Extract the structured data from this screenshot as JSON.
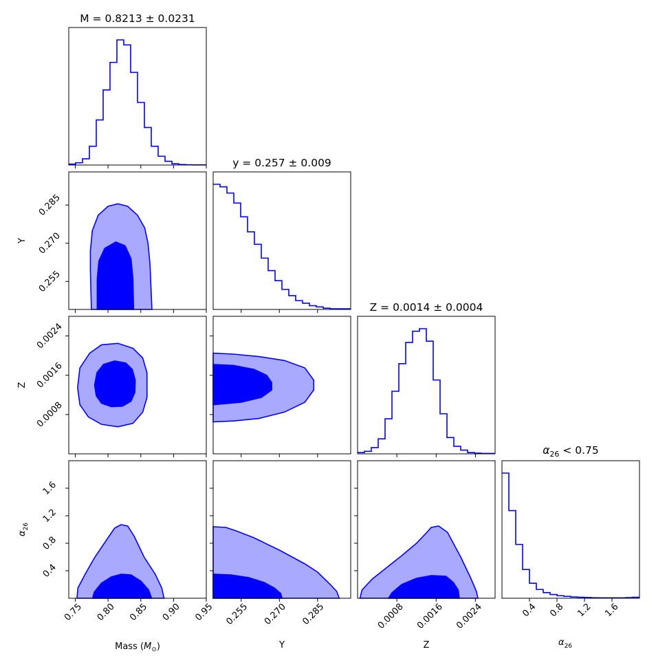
{
  "chart_data": {
    "type": "corner",
    "parameters": [
      {
        "key": "mass",
        "xlabel_main": "Mass (",
        "xlabel_sym": "M",
        "xlabel_sub": "⊙",
        "xlabel_tail": ")",
        "range": [
          0.74,
          0.95
        ]
      },
      {
        "key": "y",
        "xlabel": "Y",
        "ylabel": "Y",
        "range": [
          0.244,
          0.298
        ]
      },
      {
        "key": "z",
        "xlabel": "Z",
        "ylabel": "Z",
        "range": [
          0.0,
          0.0028
        ]
      },
      {
        "key": "alpha",
        "xlabel_main": "α",
        "xlabel_sub": "26",
        "ylabel_main": "α",
        "ylabel_sub": "26",
        "range": [
          0.0,
          2.0
        ]
      }
    ],
    "titles": [
      "M = 0.8213 ± 0.0231",
      "y = 0.257 ± 0.009",
      "Z = 0.0014 ± 0.0004",
      {
        "main": "α",
        "sub": "26",
        "tail": " <  0.75"
      }
    ],
    "ticks": {
      "mass": {
        "values": [
          0.75,
          0.8,
          0.85,
          0.9,
          0.95
        ],
        "labels": [
          "0.75",
          "0.80",
          "0.85",
          "0.90",
          "0.95"
        ]
      },
      "y": {
        "values": [
          0.255,
          0.27,
          0.285
        ],
        "labels": [
          "0.255",
          "0.270",
          "0.285"
        ]
      },
      "z": {
        "values": [
          0.0008,
          0.0016,
          0.0024
        ],
        "labels": [
          "0.0008",
          "0.0016",
          "0.0024"
        ]
      },
      "alpha_x": {
        "values": [
          0.4,
          0.8,
          1.2,
          1.6
        ],
        "labels": [
          "0.4",
          "0.8",
          "1.2",
          "1.6"
        ]
      },
      "alpha_y": {
        "values": [
          0.4,
          0.8,
          1.2,
          1.6
        ],
        "labels": [
          "0.4",
          "0.8",
          "1.2",
          "1.6"
        ]
      }
    },
    "histograms": {
      "mass": {
        "edges": [
          0.74,
          0.7505,
          0.761,
          0.7715,
          0.782,
          0.7925,
          0.803,
          0.8135,
          0.824,
          0.8345,
          0.845,
          0.8555,
          0.866,
          0.8765,
          0.887,
          0.8975,
          0.908,
          0.9185,
          0.929,
          0.9395,
          0.95
        ],
        "counts": [
          0.008,
          0.018,
          0.05,
          0.15,
          0.36,
          0.6,
          0.82,
          1.0,
          0.96,
          0.74,
          0.5,
          0.3,
          0.15,
          0.07,
          0.03,
          0.01,
          0.004,
          0.002,
          0.001,
          0.001
        ]
      },
      "y": {
        "edges": [
          0.244,
          0.2467,
          0.2494,
          0.2521,
          0.2548,
          0.2575,
          0.2602,
          0.2629,
          0.2656,
          0.2683,
          0.271,
          0.2737,
          0.2764,
          0.2791,
          0.2818,
          0.2845,
          0.2872,
          0.2899,
          0.2926,
          0.2953,
          0.298
        ],
        "counts": [
          1.0,
          0.98,
          0.93,
          0.85,
          0.74,
          0.62,
          0.52,
          0.41,
          0.31,
          0.23,
          0.16,
          0.11,
          0.07,
          0.05,
          0.03,
          0.02,
          0.01,
          0.005,
          0.005,
          0.005
        ]
      },
      "z": {
        "edges": [
          0.0,
          0.00014,
          0.00028,
          0.00042,
          0.00056,
          0.0007,
          0.00084,
          0.00098,
          0.00112,
          0.00126,
          0.0014,
          0.00154,
          0.00168,
          0.00182,
          0.00196,
          0.0021,
          0.00224,
          0.00238,
          0.00252,
          0.00266,
          0.0028
        ],
        "counts": [
          0.01,
          0.02,
          0.05,
          0.12,
          0.28,
          0.5,
          0.72,
          0.89,
          0.98,
          1.0,
          0.9,
          0.59,
          0.32,
          0.13,
          0.06,
          0.03,
          0.01,
          0.005,
          0.003,
          0.003
        ]
      },
      "alpha": {
        "edges": [
          0.0,
          0.1,
          0.2,
          0.3,
          0.4,
          0.5,
          0.6,
          0.7,
          0.8,
          0.9,
          1.0,
          1.1,
          1.2,
          1.3,
          1.4,
          1.5,
          1.6,
          1.7,
          1.8,
          1.9,
          2.0
        ],
        "counts": [
          1.0,
          0.7,
          0.43,
          0.23,
          0.12,
          0.07,
          0.045,
          0.03,
          0.02,
          0.015,
          0.01,
          0.008,
          0.006,
          0.004,
          0.003,
          0.003,
          0.003,
          0.003,
          0.005,
          0.008
        ]
      }
    },
    "contours": {
      "mass_y": {
        "outer": [
          [
            0.7745,
            0.244
          ],
          [
            0.773,
            0.26
          ],
          [
            0.773,
            0.267
          ],
          [
            0.776,
            0.275
          ],
          [
            0.785,
            0.281
          ],
          [
            0.8,
            0.2845
          ],
          [
            0.815,
            0.2855
          ],
          [
            0.83,
            0.2845
          ],
          [
            0.845,
            0.281
          ],
          [
            0.856,
            0.276
          ],
          [
            0.861,
            0.27
          ],
          [
            0.864,
            0.262
          ],
          [
            0.867,
            0.244
          ]
        ],
        "inner": [
          [
            0.7835,
            0.244
          ],
          [
            0.7835,
            0.256
          ],
          [
            0.786,
            0.263
          ],
          [
            0.795,
            0.268
          ],
          [
            0.812,
            0.2705
          ],
          [
            0.826,
            0.269
          ],
          [
            0.835,
            0.264
          ],
          [
            0.838,
            0.256
          ],
          [
            0.839,
            0.244
          ]
        ]
      },
      "mass_z": {
        "outer": [
          [
            0.7535,
            0.00135
          ],
          [
            0.757,
            0.00175
          ],
          [
            0.772,
            0.00205
          ],
          [
            0.79,
            0.00222
          ],
          [
            0.815,
            0.00225
          ],
          [
            0.838,
            0.00215
          ],
          [
            0.853,
            0.00195
          ],
          [
            0.8595,
            0.00165
          ],
          [
            0.8595,
            0.00115
          ],
          [
            0.853,
            0.00085
          ],
          [
            0.838,
            0.00062
          ],
          [
            0.815,
            0.00055
          ],
          [
            0.79,
            0.0006
          ],
          [
            0.77,
            0.00075
          ],
          [
            0.757,
            0.001
          ]
        ],
        "inner": [
          [
            0.7795,
            0.0014
          ],
          [
            0.783,
            0.00165
          ],
          [
            0.793,
            0.00182
          ],
          [
            0.81,
            0.00189
          ],
          [
            0.827,
            0.00185
          ],
          [
            0.837,
            0.00172
          ],
          [
            0.8415,
            0.0015
          ],
          [
            0.841,
            0.00125
          ],
          [
            0.835,
            0.00107
          ],
          [
            0.822,
            0.00097
          ],
          [
            0.805,
            0.00096
          ],
          [
            0.79,
            0.00103
          ],
          [
            0.782,
            0.00118
          ]
        ]
      },
      "mass_alpha": {
        "outer": [
          [
            0.7525,
            0.0
          ],
          [
            0.754,
            0.15
          ],
          [
            0.765,
            0.35
          ],
          [
            0.78,
            0.6
          ],
          [
            0.8,
            0.88
          ],
          [
            0.81,
            1.02
          ],
          [
            0.82,
            1.07
          ],
          [
            0.83,
            1.05
          ],
          [
            0.84,
            0.9
          ],
          [
            0.855,
            0.6
          ],
          [
            0.872,
            0.35
          ],
          [
            0.882,
            0.15
          ],
          [
            0.8855,
            0.0
          ]
        ],
        "inner": [
          [
            0.7765,
            0.0
          ],
          [
            0.779,
            0.09
          ],
          [
            0.79,
            0.22
          ],
          [
            0.805,
            0.31
          ],
          [
            0.82,
            0.35
          ],
          [
            0.835,
            0.34
          ],
          [
            0.85,
            0.25
          ],
          [
            0.862,
            0.12
          ],
          [
            0.8665,
            0.0
          ]
        ]
      },
      "y_z": {
        "outer": [
          [
            0.244,
            0.00205
          ],
          [
            0.252,
            0.00203
          ],
          [
            0.262,
            0.00198
          ],
          [
            0.272,
            0.0019
          ],
          [
            0.28,
            0.00175
          ],
          [
            0.2835,
            0.0015
          ],
          [
            0.2835,
            0.0013
          ],
          [
            0.28,
            0.00105
          ],
          [
            0.272,
            0.00085
          ],
          [
            0.262,
            0.00072
          ],
          [
            0.252,
            0.00067
          ],
          [
            0.244,
            0.00065
          ]
        ],
        "inner": [
          [
            0.244,
            0.00182
          ],
          [
            0.252,
            0.0018
          ],
          [
            0.26,
            0.00172
          ],
          [
            0.265,
            0.0016
          ],
          [
            0.267,
            0.00145
          ],
          [
            0.267,
            0.0013
          ],
          [
            0.263,
            0.00115
          ],
          [
            0.255,
            0.00105
          ],
          [
            0.244,
            0.001
          ]
        ]
      },
      "y_alpha": {
        "outer": [
          [
            0.244,
            0.0
          ],
          [
            0.244,
            1.04
          ],
          [
            0.249,
            1.03
          ],
          [
            0.253,
            0.98
          ],
          [
            0.26,
            0.88
          ],
          [
            0.27,
            0.7
          ],
          [
            0.28,
            0.5
          ],
          [
            0.285,
            0.38
          ],
          [
            0.29,
            0.2
          ],
          [
            0.2925,
            0.1
          ],
          [
            0.2935,
            0.0
          ]
        ],
        "inner": [
          [
            0.244,
            0.0
          ],
          [
            0.244,
            0.35
          ],
          [
            0.251,
            0.34
          ],
          [
            0.258,
            0.3
          ],
          [
            0.264,
            0.23
          ],
          [
            0.268,
            0.15
          ],
          [
            0.2705,
            0.07
          ],
          [
            0.271,
            0.0
          ]
        ]
      },
      "z_alpha": {
        "outer": [
          [
            5e-05,
            0.0
          ],
          [
            9e-05,
            0.12
          ],
          [
            0.0003,
            0.28
          ],
          [
            0.0006,
            0.45
          ],
          [
            0.0009,
            0.62
          ],
          [
            0.0012,
            0.8
          ],
          [
            0.0014,
            0.95
          ],
          [
            0.0015,
            1.03
          ],
          [
            0.00165,
            1.05
          ],
          [
            0.00183,
            0.96
          ],
          [
            0.0021,
            0.6
          ],
          [
            0.0023,
            0.3
          ],
          [
            0.00242,
            0.1
          ],
          [
            0.00245,
            0.0
          ]
        ],
        "inner": [
          [
            0.00063,
            0.0
          ],
          [
            0.0007,
            0.08
          ],
          [
            0.0009,
            0.2
          ],
          [
            0.0012,
            0.29
          ],
          [
            0.0015,
            0.33
          ],
          [
            0.0018,
            0.32
          ],
          [
            0.00195,
            0.23
          ],
          [
            0.00205,
            0.12
          ],
          [
            0.00207,
            0.0
          ]
        ]
      }
    }
  }
}
